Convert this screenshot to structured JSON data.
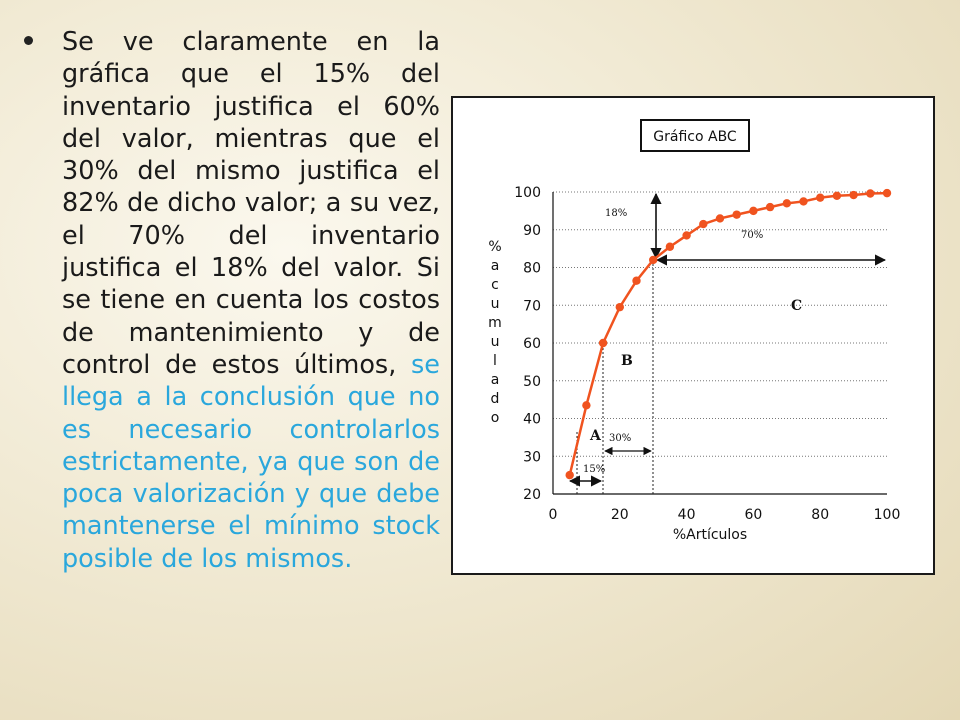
{
  "paragraph": {
    "text_main": "Se ve claramente en la gráfica que el 15% del inventario justifica el 60% del valor, mientras que el 30% del mismo justifica el 82% de dicho valor; a su vez, el 70% del inventario justifica el 18% del valor. Si se tiene en cuenta los costos de mantenimiento y de control de estos últimos, ",
    "text_highlight": "se llega a la conclusión que no es necesario controlarlos estrictamente, ya que son de poca valorización y que debe mantenerse el mínimo stock posible de los mismos."
  },
  "colors": {
    "body_text": "#1a1a1a",
    "highlight_text": "#2aa7dc",
    "curve": "#f0531f"
  },
  "chart_data": {
    "type": "line",
    "title": "Gráfico ABC",
    "xlabel": "%Artículos",
    "ylabel": "% a c u m u l a d o",
    "xlim": [
      0,
      100
    ],
    "ylim": [
      20,
      100
    ],
    "xticks": [
      0,
      20,
      40,
      60,
      80,
      100
    ],
    "yticks": [
      20,
      30,
      40,
      50,
      60,
      70,
      80,
      90,
      100
    ],
    "grid": "horizontal-dotted",
    "series": [
      {
        "x": [
          5,
          10,
          15,
          20,
          25,
          30,
          35,
          40,
          45,
          50,
          55,
          60,
          65,
          70,
          75,
          80,
          85,
          90,
          95,
          100
        ],
        "y": [
          25,
          43.5,
          60,
          69.5,
          76.5,
          82,
          85.5,
          88.5,
          91.5,
          93,
          94,
          95,
          96,
          97,
          97.5,
          98.5,
          99,
          99.2,
          99.6,
          99.7
        ]
      }
    ],
    "annotations": {
      "class_a": "A",
      "class_b": "B",
      "class_c": "C",
      "pct_15": "15%",
      "pct_30": "30%",
      "pct_18": "18%",
      "pct_70": "70%"
    }
  }
}
